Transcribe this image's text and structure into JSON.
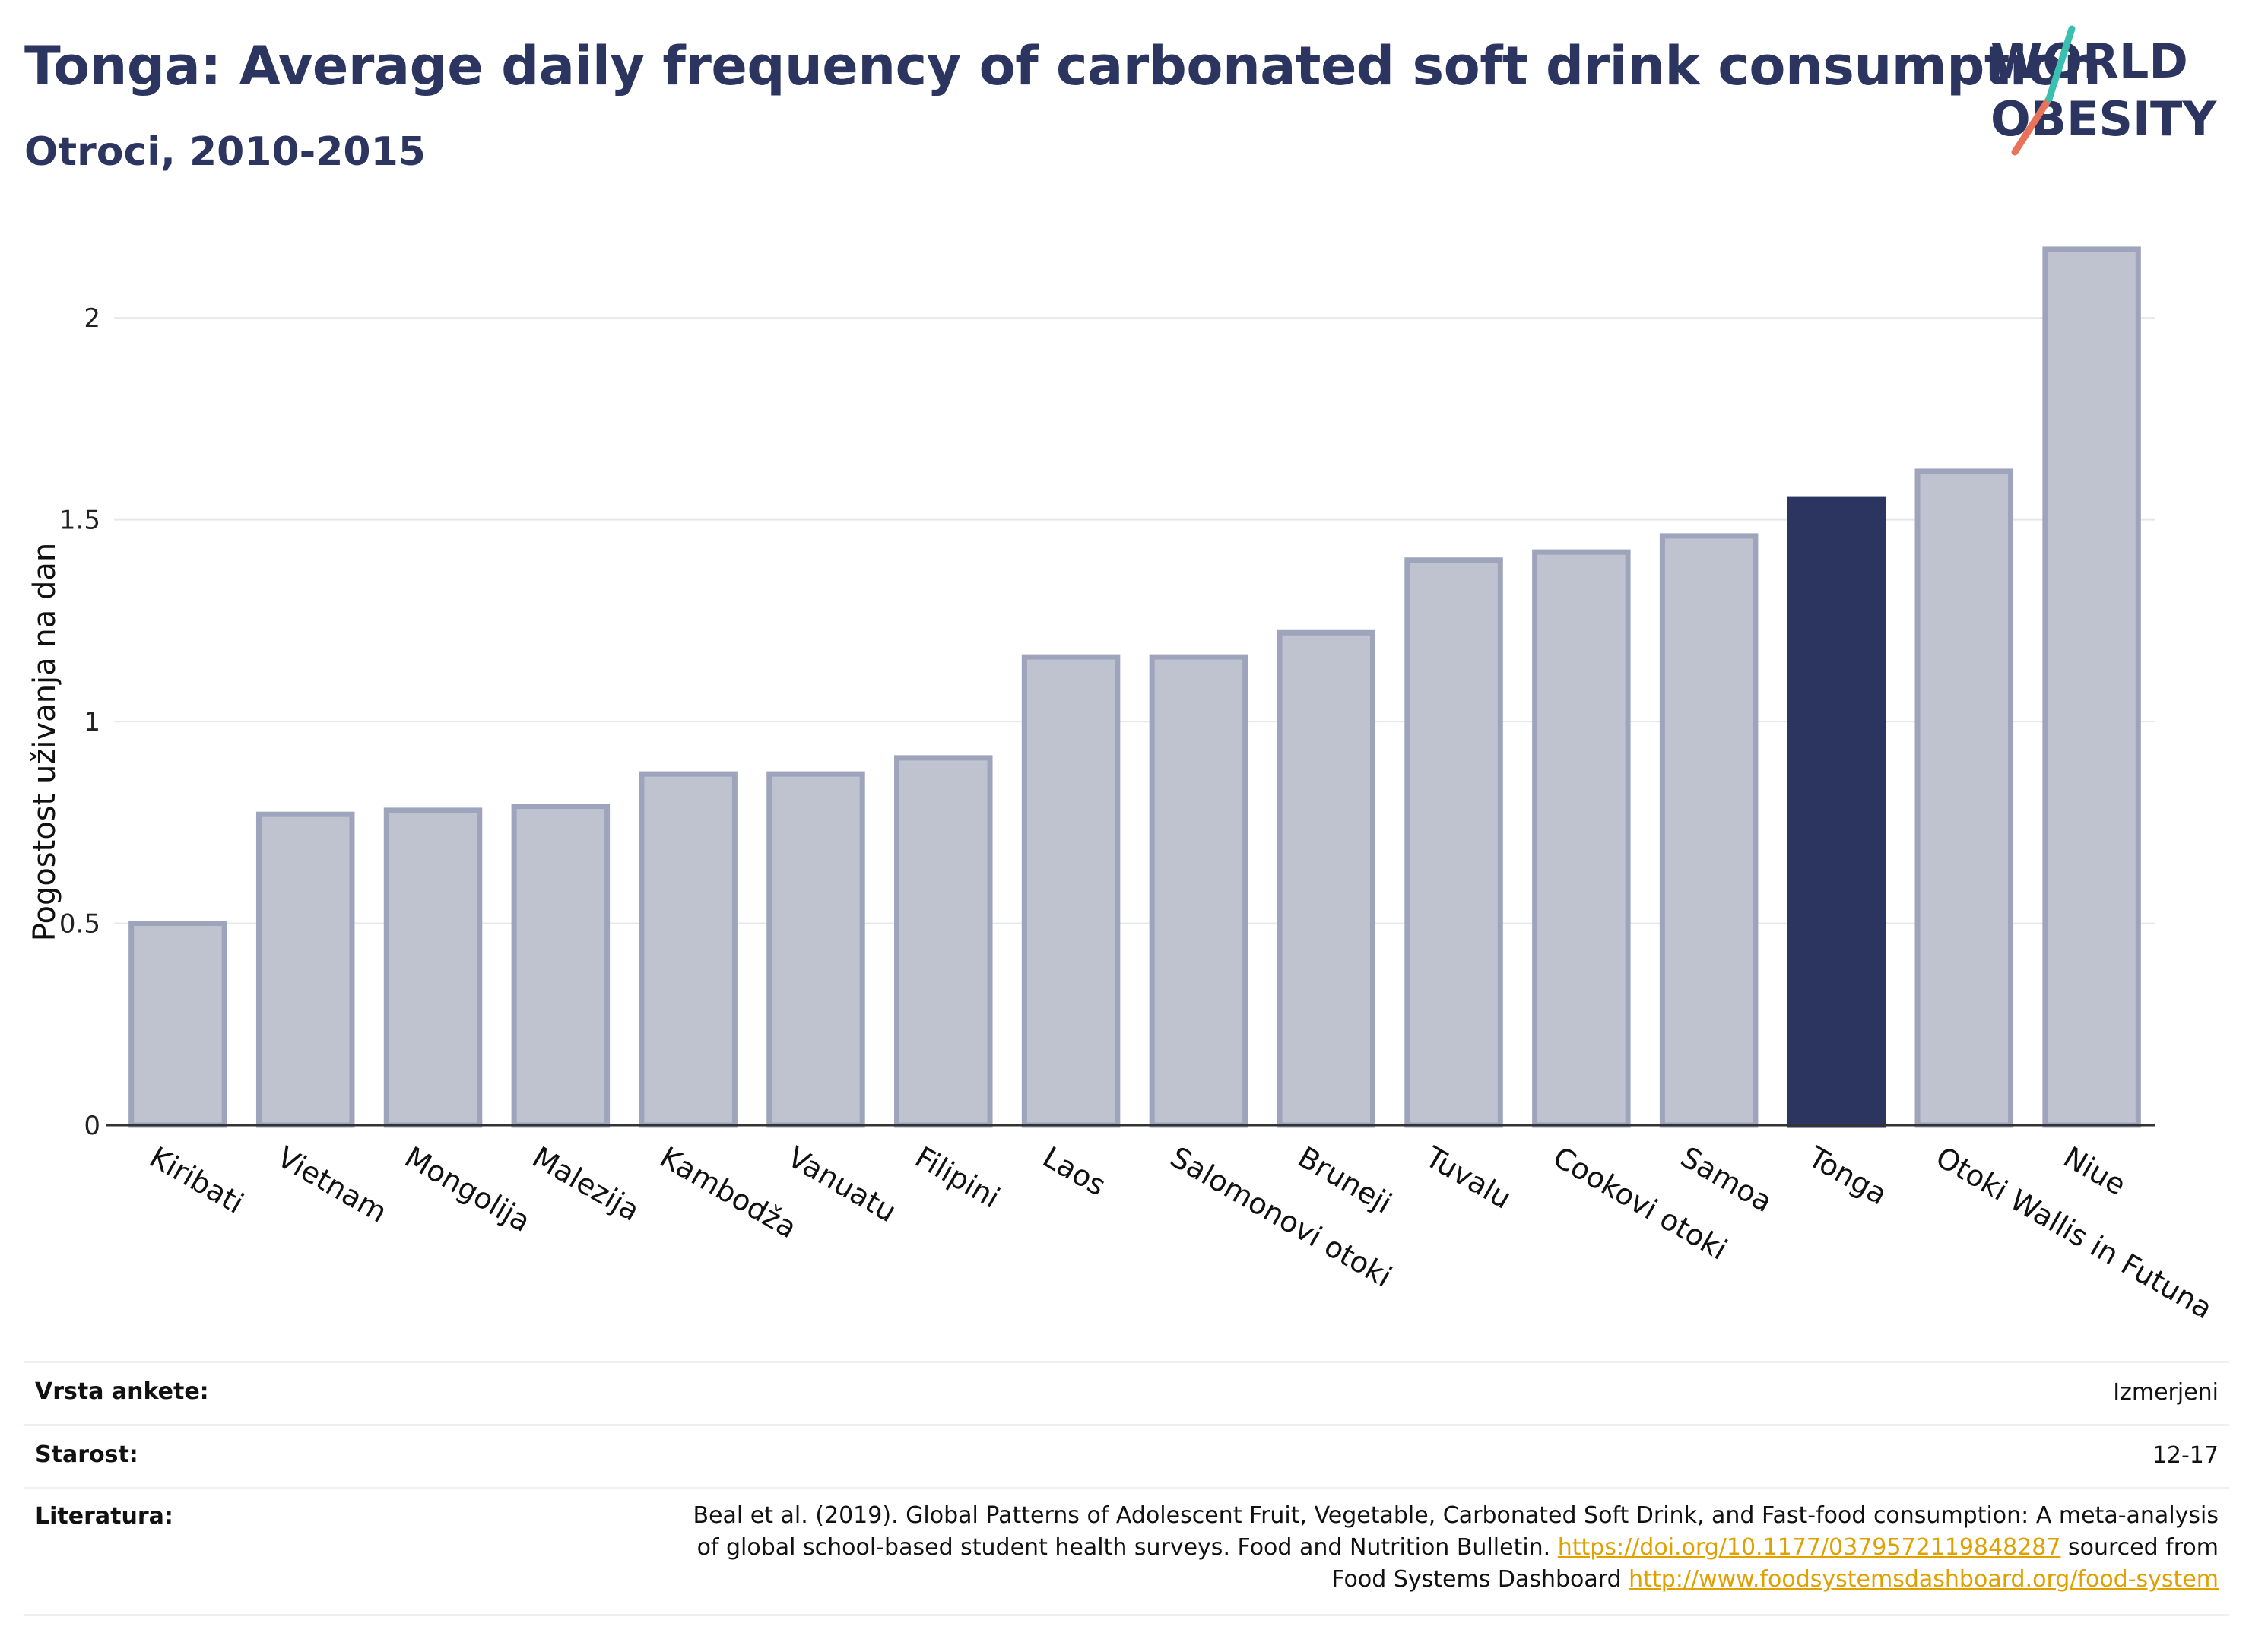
{
  "header": {
    "title": "Tonga: Average daily frequency of carbonated soft drink consumption",
    "subtitle": "Otroci, 2010-2015"
  },
  "logo": {
    "line1": "WORLD",
    "line2": "OBESITY"
  },
  "colors": {
    "highlight": "#2b3560",
    "bar": "#bfc3d0",
    "bar_border": "#9ea4bc",
    "text": "#2b3560"
  },
  "chart_data": {
    "type": "bar",
    "ylabel": "Pogostost uživanja na dan",
    "xlabel": "",
    "ylim": [
      0,
      2.2
    ],
    "yticks": [
      0,
      0.5,
      1,
      1.5,
      2
    ],
    "yticklabels": [
      "0",
      "0.5",
      "1",
      "1.5",
      "2"
    ],
    "grid": true,
    "highlight": "Tonga",
    "categories": [
      "Kiribati",
      "Vietnam",
      "Mongolija",
      "Malezija",
      "Kambodža",
      "Vanuatu",
      "Filipini",
      "Laos",
      "Salomonovi otoki",
      "Bruneji",
      "Tuvalu",
      "Cookovi otoki",
      "Samoa",
      "Tonga",
      "Otoki Wallis in Futuna",
      "Niue"
    ],
    "values": [
      0.5,
      0.77,
      0.78,
      0.79,
      0.87,
      0.87,
      0.91,
      1.16,
      1.16,
      1.22,
      1.4,
      1.42,
      1.46,
      1.55,
      1.62,
      2.17
    ]
  },
  "info": {
    "rows": [
      {
        "key": "Vrsta ankete:",
        "value": "Izmerjeni"
      },
      {
        "key": "Starost:",
        "value": "12-17"
      }
    ],
    "literature": {
      "key": "Literatura:",
      "line1": "Beal et al. (2019). Global Patterns of Adolescent Fruit, Vegetable, Carbonated Soft Drink, and Fast-food consumption: A meta-analysis",
      "line2_text": "of global school-based student health surveys. Food and Nutrition Bulletin. ",
      "line2_link": "https://doi.org/10.1177/0379572119848287",
      "line2_suffix": " sourced from",
      "line3_text": "Food Systems Dashboard ",
      "line3_link": "http://www.foodsystemsdashboard.org/food-system"
    }
  }
}
